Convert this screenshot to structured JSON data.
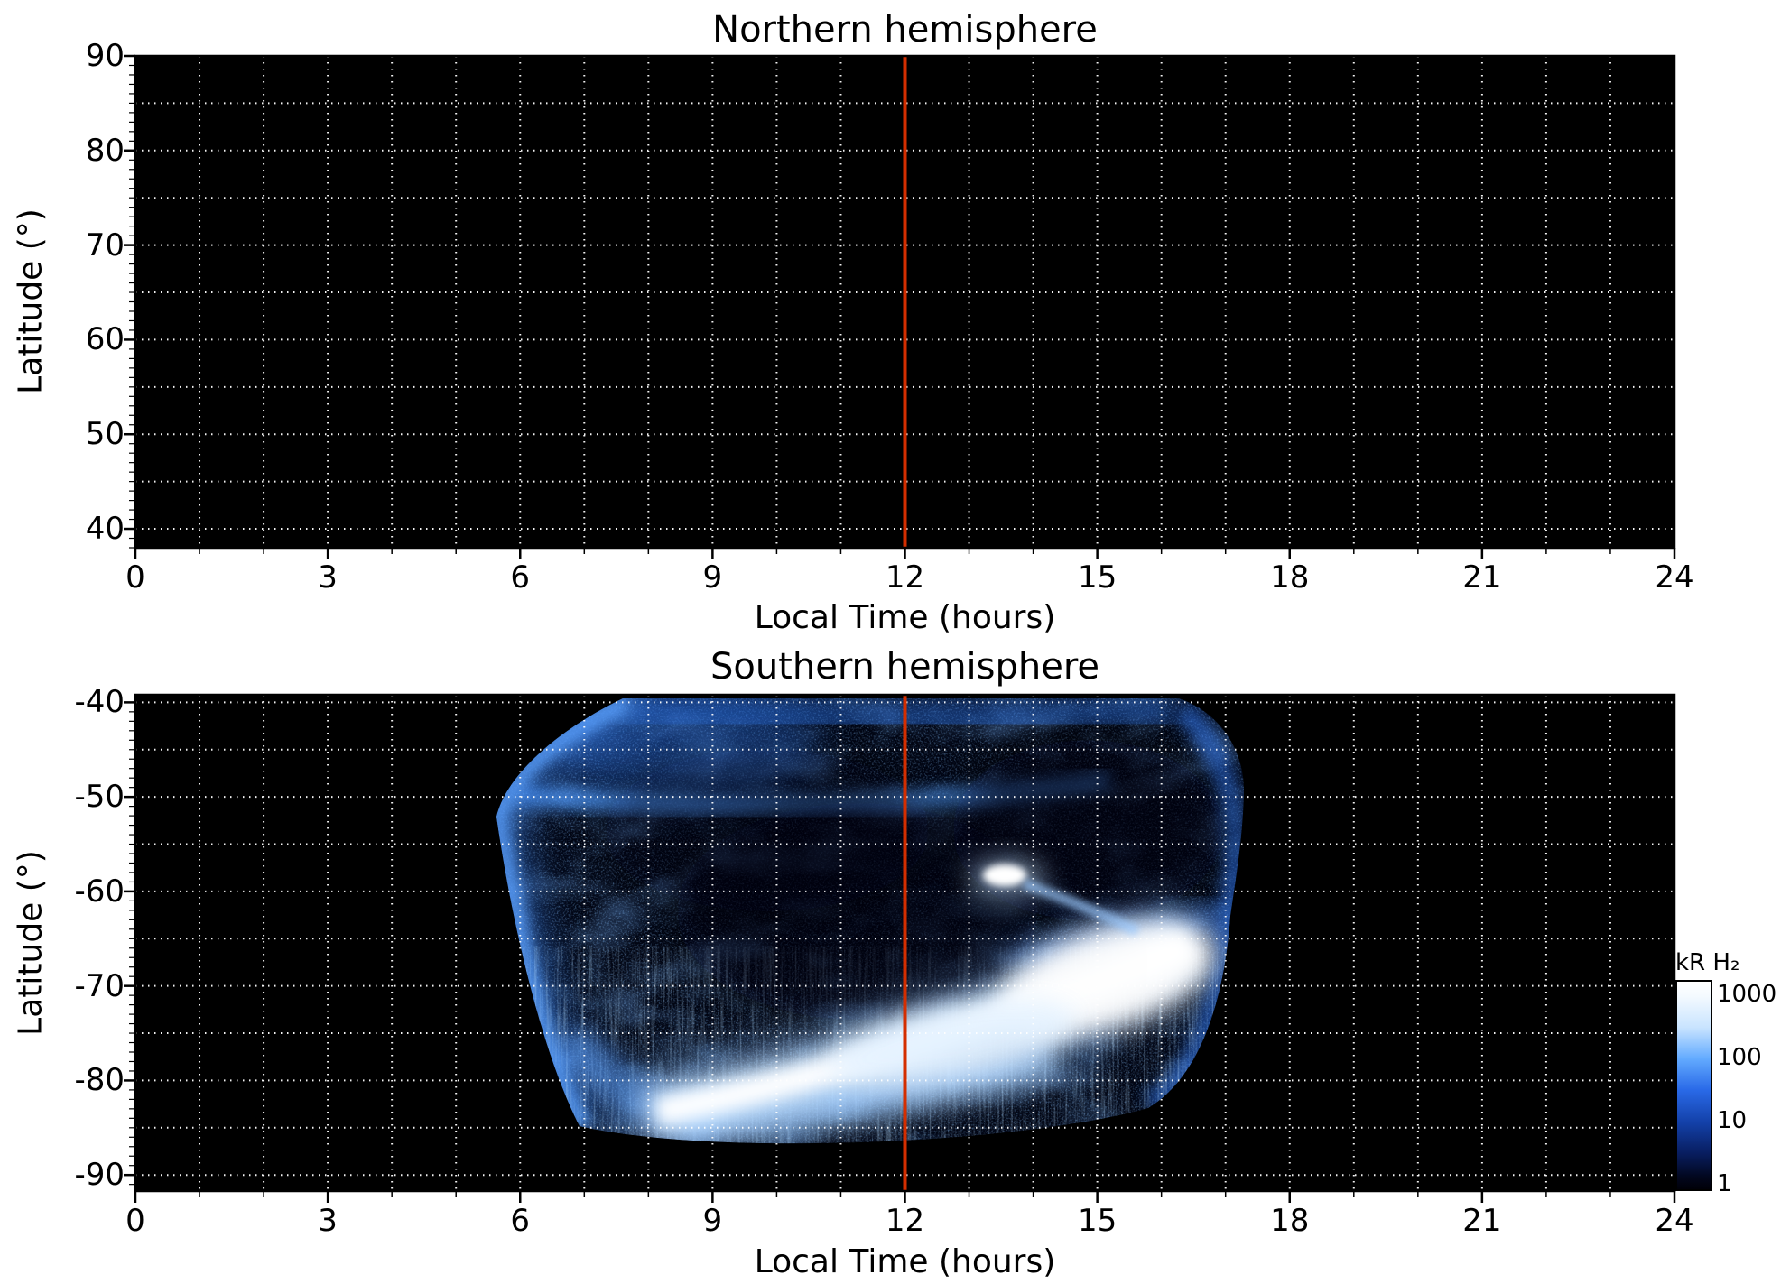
{
  "figure": {
    "background": "#ffffff",
    "plot_background": "#000000",
    "grid_color": "#ffffff",
    "axis_color": "#000000",
    "noon_line_color": "#d42e00",
    "noon_line_hours": 12
  },
  "chart_data": [
    {
      "type": "heatmap",
      "title": "Northern hemisphere",
      "xlabel": "Local Time (hours)",
      "ylabel": "Latitude (°)",
      "xlim": [
        0,
        24
      ],
      "ylim": [
        38,
        90
      ],
      "xticks": [
        0,
        3,
        6,
        9,
        12,
        15,
        18,
        21,
        24
      ],
      "yticks": [
        90,
        80,
        70,
        60,
        50,
        40
      ],
      "grid_x_step": 1,
      "grid_y_step": 5,
      "x_minor_step": 1,
      "y_minor_step": 1,
      "grid": "white dotted",
      "marker_line_x": 12,
      "colormap": "blue, log scale 1–1000 kR H2",
      "data_summary": "No H2 auroral emission observed in the northern hemisphere; entire panel at background level (black)."
    },
    {
      "type": "heatmap",
      "title": "Southern hemisphere",
      "xlabel": "Local Time (hours)",
      "ylabel": "Latitude (°)",
      "xlim": [
        0,
        24
      ],
      "ylim": [
        -91.7,
        -39.2
      ],
      "xticks": [
        0,
        3,
        6,
        9,
        12,
        15,
        18,
        21,
        24
      ],
      "yticks": [
        -40,
        -50,
        -60,
        -70,
        -80,
        -90
      ],
      "grid_x_step": 1,
      "grid_y_step": 5,
      "x_minor_step": 1,
      "y_minor_step": 1,
      "grid": "white dotted",
      "marker_line_x": 12,
      "colormap": "blue, log scale 1–1000 kR H2",
      "data_summary": "H2 auroral emission observed in a swath between ~05:30 and ~17:00 local time, latitudes -40° to -87°. Diffuse speckled emission (1–100 kR) over most of the swath, brighter blue bands near the dawn-side and top edges, a saturated white main oval arc rising from (LT 8, -84°) to (LT 16.5, -65°), bright light-blue fan below it, and an intense white spot near LT 13.6, -58.5°. Region outside the swath was not observed (black).",
      "features": [
        {
          "name": "main-auroral-arc",
          "local_time": [
            8,
            16.5
          ],
          "latitude": [
            -85,
            -64
          ],
          "intensity_kR": "300–1000+ (white)"
        },
        {
          "name": "bright-spot",
          "local_time": 13.6,
          "latitude": -58.5,
          "intensity_kR": "~1000"
        },
        {
          "name": "diffuse-speckled-emission",
          "local_time": [
            5.5,
            17
          ],
          "latitude": [
            -40,
            -87
          ],
          "intensity_kR": "1–100"
        },
        {
          "name": "dawn-edge-streaks",
          "local_time": [
            5.6,
            7
          ],
          "latitude": [
            -52,
            -85
          ],
          "intensity_kR": "10–100"
        },
        {
          "name": "sub-arc-light-blue-fan",
          "local_time": [
            8.5,
            14.5
          ],
          "latitude": [
            -78,
            -86
          ],
          "intensity_kR": "100–300"
        }
      ]
    }
  ],
  "colorbar": {
    "title": "kR H₂",
    "scale": "log",
    "tick_labels": [
      "1000",
      "100",
      "10",
      "1"
    ],
    "top_color": "#ffffff",
    "bottom_color": "#000008"
  }
}
